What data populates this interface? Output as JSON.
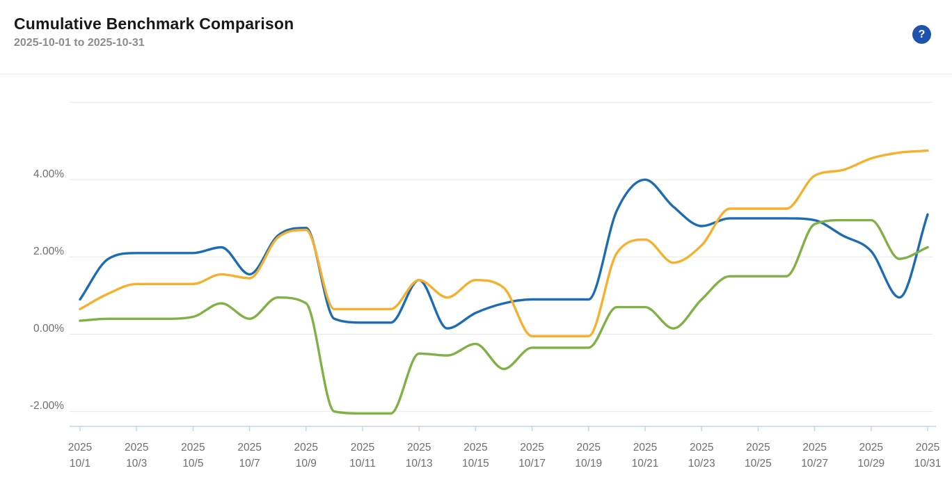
{
  "header": {
    "title": "Cumulative Benchmark Comparison",
    "subtitle": "2025-10-01 to 2025-10-31",
    "help_icon": "?"
  },
  "colors": {
    "blue_series": "#1b6cb3",
    "orange_series": "#f6b02e",
    "green_series": "#7fb144",
    "gridline": "#e8e8e8",
    "axis_line": "#c3d6ea",
    "tick_text": "#6e6e6e",
    "title_text": "#17181a",
    "subtitle_text": "#8c8c8c",
    "help_bg": "#1d53ae",
    "help_fg": "#ffffff"
  },
  "chart_data": {
    "type": "line",
    "title": "Cumulative Benchmark Comparison",
    "date_range": "2025-10-01 to 2025-10-31",
    "x_year": "2025",
    "x": [
      "10/1",
      "10/2",
      "10/3",
      "10/4",
      "10/5",
      "10/6",
      "10/7",
      "10/8",
      "10/9",
      "10/10",
      "10/11",
      "10/12",
      "10/13",
      "10/14",
      "10/15",
      "10/16",
      "10/17",
      "10/18",
      "10/19",
      "10/20",
      "10/21",
      "10/22",
      "10/23",
      "10/24",
      "10/25",
      "10/26",
      "10/27",
      "10/28",
      "10/29",
      "10/30",
      "10/31"
    ],
    "x_tick_every": 2,
    "y_tick_labels": [
      "4.00%",
      "2.00%",
      "0.00%",
      "-2.00%"
    ],
    "y_tick_values": [
      4,
      2,
      0,
      -2
    ],
    "y_gridline_values": [
      6,
      4,
      2,
      0,
      -2
    ],
    "ylim": [
      -2.4,
      6.0
    ],
    "y_unit": "%",
    "grid": true,
    "legend": "none",
    "series": [
      {
        "name": "benchmark-blue",
        "color": "#1b6cb3",
        "values": [
          0.9,
          1.95,
          2.1,
          2.1,
          2.1,
          2.25,
          1.55,
          2.55,
          2.75,
          0.4,
          0.3,
          0.3,
          1.4,
          0.15,
          0.55,
          0.8,
          0.9,
          0.9,
          0.9,
          3.2,
          4.0,
          3.3,
          2.8,
          3.0,
          3.0,
          3.0,
          2.95,
          2.55,
          2.15,
          0.95,
          3.1
        ]
      },
      {
        "name": "benchmark-orange",
        "color": "#f6b02e",
        "values": [
          0.65,
          1.05,
          1.3,
          1.3,
          1.3,
          1.55,
          1.45,
          2.5,
          2.7,
          0.65,
          0.65,
          0.65,
          1.4,
          0.95,
          1.4,
          1.2,
          -0.05,
          -0.05,
          -0.05,
          2.1,
          2.45,
          1.85,
          2.3,
          3.25,
          3.25,
          3.25,
          4.1,
          4.25,
          4.55,
          4.7,
          4.75
        ]
      },
      {
        "name": "benchmark-green",
        "color": "#7fb144",
        "values": [
          0.35,
          0.4,
          0.4,
          0.4,
          0.45,
          0.8,
          0.4,
          0.95,
          0.8,
          -2.0,
          -2.05,
          -2.05,
          -0.5,
          -0.55,
          -0.25,
          -0.9,
          -0.35,
          -0.35,
          -0.35,
          0.7,
          0.7,
          0.15,
          0.9,
          1.5,
          1.5,
          1.5,
          2.85,
          2.95,
          2.95,
          1.95,
          2.25
        ]
      }
    ]
  }
}
